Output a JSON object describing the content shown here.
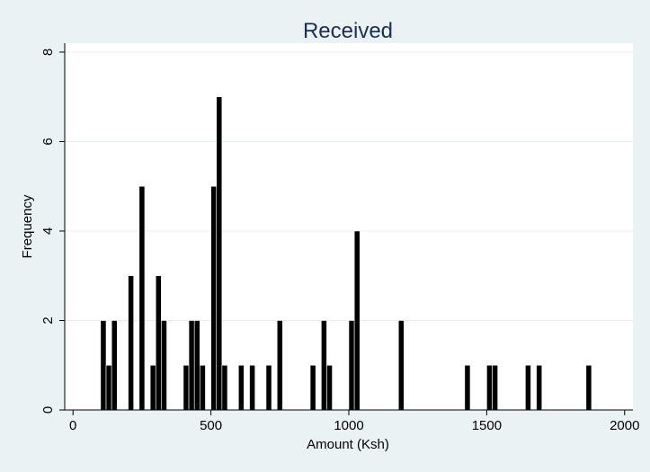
{
  "chart_data": {
    "type": "bar",
    "title": "Received",
    "xlabel": "Amount (Ksh)",
    "ylabel": "Frequency",
    "xlim": [
      -30,
      2030
    ],
    "ylim": [
      0,
      8.2
    ],
    "xticks": [
      0,
      500,
      1000,
      1500,
      2000
    ],
    "yticks": [
      0,
      2,
      4,
      6,
      8
    ],
    "grid": true,
    "bin_width": 20,
    "bars": [
      {
        "x": 100,
        "y": 2
      },
      {
        "x": 120,
        "y": 1
      },
      {
        "x": 140,
        "y": 2
      },
      {
        "x": 200,
        "y": 3
      },
      {
        "x": 240,
        "y": 5
      },
      {
        "x": 280,
        "y": 1
      },
      {
        "x": 300,
        "y": 3
      },
      {
        "x": 320,
        "y": 2
      },
      {
        "x": 400,
        "y": 1
      },
      {
        "x": 420,
        "y": 2
      },
      {
        "x": 440,
        "y": 2
      },
      {
        "x": 460,
        "y": 1
      },
      {
        "x": 500,
        "y": 5
      },
      {
        "x": 520,
        "y": 7
      },
      {
        "x": 540,
        "y": 1
      },
      {
        "x": 600,
        "y": 1
      },
      {
        "x": 640,
        "y": 1
      },
      {
        "x": 700,
        "y": 1
      },
      {
        "x": 740,
        "y": 2
      },
      {
        "x": 860,
        "y": 1
      },
      {
        "x": 900,
        "y": 2
      },
      {
        "x": 920,
        "y": 1
      },
      {
        "x": 1000,
        "y": 2
      },
      {
        "x": 1020,
        "y": 4
      },
      {
        "x": 1180,
        "y": 2
      },
      {
        "x": 1420,
        "y": 1
      },
      {
        "x": 1500,
        "y": 1
      },
      {
        "x": 1520,
        "y": 1
      },
      {
        "x": 1640,
        "y": 1
      },
      {
        "x": 1680,
        "y": 1
      },
      {
        "x": 1860,
        "y": 1
      }
    ]
  }
}
